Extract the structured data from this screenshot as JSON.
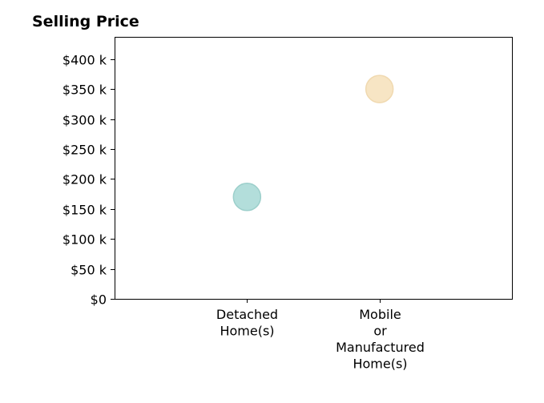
{
  "chart_data": {
    "type": "scatter",
    "title": "Selling Price",
    "xlabel": "",
    "ylabel": "",
    "categories": [
      [
        "Detached",
        "Home(s)"
      ],
      [
        "Mobile",
        "or",
        "Manufactured",
        "Home(s)"
      ]
    ],
    "values": [
      170000,
      350000
    ],
    "colors": [
      "#b3dedb",
      "#f7e5c4"
    ],
    "edge_colors": [
      "#9ccfcb",
      "#f0d9b0"
    ],
    "ylim": [
      0,
      437000
    ],
    "yticks": [
      0,
      50000,
      100000,
      150000,
      200000,
      250000,
      300000,
      350000,
      400000
    ],
    "ytick_labels": [
      "$0",
      "$50 k",
      "$100 k",
      "$150 k",
      "$200 k",
      "$250 k",
      "$300 k",
      "$350 k",
      "$400 k"
    ],
    "grid": false,
    "legend": "none"
  }
}
